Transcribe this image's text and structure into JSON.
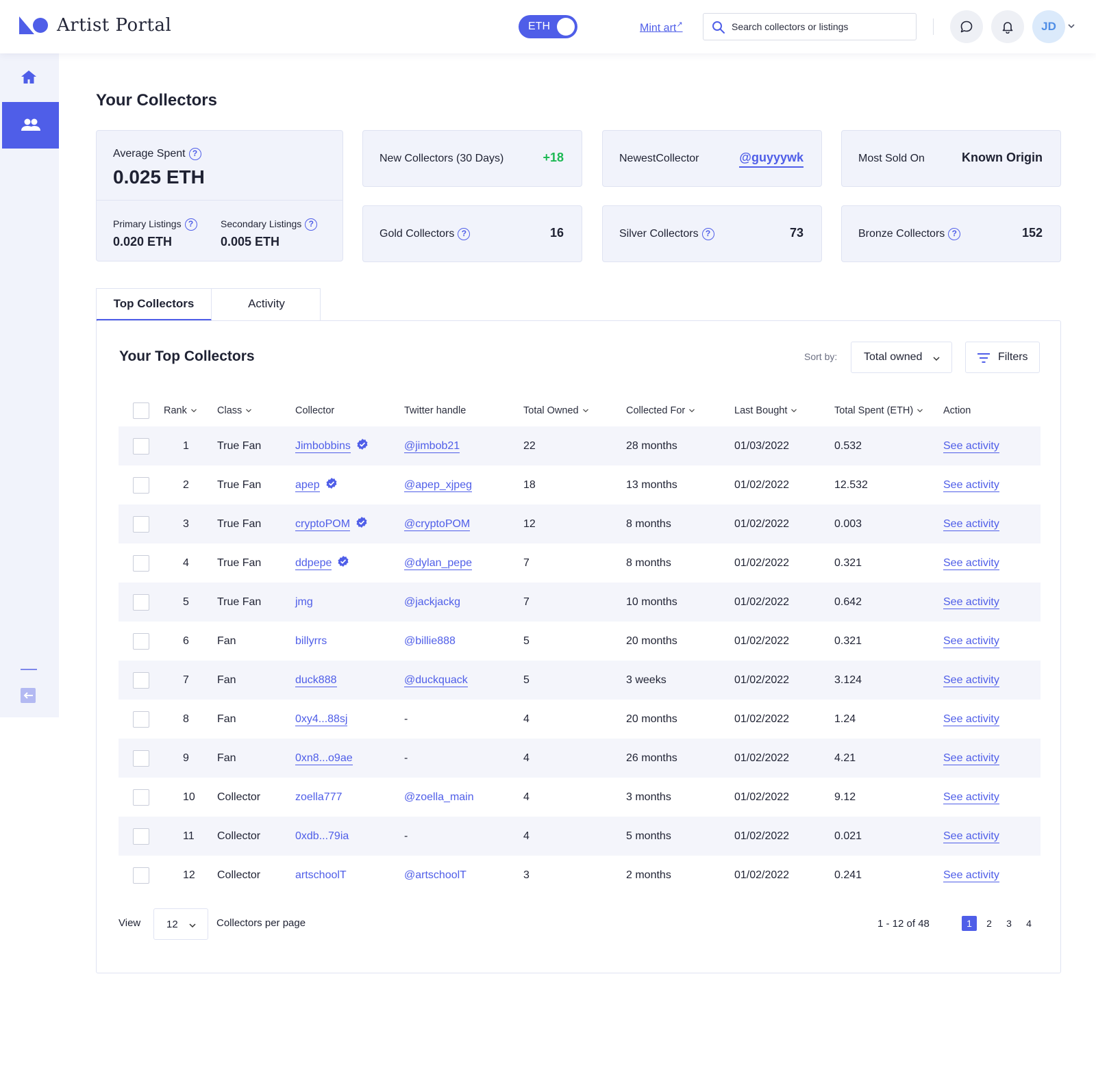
{
  "header": {
    "brand": "Artist Portal",
    "currency_toggle": "ETH",
    "mint_label": "Mint art",
    "mint_arrow": "↗",
    "search_placeholder": "Search collectors or listings",
    "avatar_initials": "JD"
  },
  "colors": {
    "accent": "#4f5ee8",
    "positive": "#1db954",
    "card_bg": "#f1f3fb"
  },
  "main": {
    "title": "Your Collectors",
    "average_spent": {
      "label": "Average Spent",
      "value": "0.025 ETH",
      "primary_label": "Primary Listings",
      "primary_value": "0.020 ETH",
      "secondary_label": "Secondary Listings",
      "secondary_value": "0.005 ETH"
    },
    "stats": {
      "new_collectors": {
        "label": "New Collectors (30 Days)",
        "value": "+18"
      },
      "newest_collector": {
        "label": "NewestCollector",
        "value": "@guyyywk"
      },
      "most_sold_on": {
        "label": "Most Sold On",
        "value": "Known Origin"
      },
      "gold": {
        "label": "Gold Collectors",
        "value": "16"
      },
      "silver": {
        "label": "Silver Collectors",
        "value": "73"
      },
      "bronze": {
        "label": "Bronze Collectors",
        "value": "152"
      }
    },
    "tabs": [
      {
        "label": "Top Collectors"
      },
      {
        "label": "Activity"
      }
    ]
  },
  "table": {
    "title": "Your Top Collectors",
    "sort_label": "Sort by:",
    "sort_value": "Total owned",
    "filters_label": "Filters",
    "columns": {
      "rank": "Rank",
      "class": "Class",
      "collector": "Collector",
      "twitter": "Twitter handle",
      "owned": "Total Owned",
      "collected_for": "Collected For",
      "last_bought": "Last Bought",
      "spent": "Total Spent (ETH)",
      "action": "Action"
    },
    "action_label": "See activity",
    "rows": [
      {
        "rank": "1",
        "class": "True Fan",
        "collector": "Jimbobbins",
        "verified": true,
        "twitter": "@jimbob21",
        "owned": "22",
        "for": "28 months",
        "last": "01/03/2022",
        "spent": "0.532"
      },
      {
        "rank": "2",
        "class": "True Fan",
        "collector": "apep",
        "verified": true,
        "twitter": "@apep_xjpeg",
        "owned": "18",
        "for": "13 months",
        "last": "01/02/2022",
        "spent": "12.532"
      },
      {
        "rank": "3",
        "class": "True Fan",
        "collector": "cryptoPOM",
        "verified": true,
        "twitter": "@cryptoPOM",
        "owned": "12",
        "for": "8 months",
        "last": "01/02/2022",
        "spent": "0.003"
      },
      {
        "rank": "4",
        "class": "True Fan",
        "collector": "ddpepe",
        "verified": true,
        "twitter": "@dylan_pepe",
        "owned": "7",
        "for": "8 months",
        "last": "01/02/2022",
        "spent": "0.321"
      },
      {
        "rank": "5",
        "class": "True Fan",
        "collector": "jmg",
        "verified": false,
        "twitter": "@jackjackg",
        "owned": "7",
        "for": "10 months",
        "last": "01/02/2022",
        "spent": "0.642"
      },
      {
        "rank": "6",
        "class": "Fan",
        "collector": "billyrrs",
        "verified": false,
        "twitter": "@billie888",
        "owned": "5",
        "for": "20 months",
        "last": "01/02/2022",
        "spent": "0.321"
      },
      {
        "rank": "7",
        "class": "Fan",
        "collector": "duck888",
        "verified": false,
        "twitter": "@duckquack",
        "owned": "5",
        "for": "3 weeks",
        "last": "01/02/2022",
        "spent": "3.124"
      },
      {
        "rank": "8",
        "class": "Fan",
        "collector": "0xy4...88sj",
        "verified": false,
        "twitter": "-",
        "owned": "4",
        "for": "20 months",
        "last": "01/02/2022",
        "spent": "1.24"
      },
      {
        "rank": "9",
        "class": "Fan",
        "collector": "0xn8...o9ae",
        "verified": false,
        "twitter": "-",
        "owned": "4",
        "for": "26 months",
        "last": "01/02/2022",
        "spent": "4.21"
      },
      {
        "rank": "10",
        "class": "Collector",
        "collector": "zoella777",
        "verified": false,
        "twitter": "@zoella_main",
        "owned": "4",
        "for": "3 months",
        "last": "01/02/2022",
        "spent": "9.12"
      },
      {
        "rank": "11",
        "class": "Collector",
        "collector": "0xdb...79ia",
        "verified": false,
        "twitter": "-",
        "owned": "4",
        "for": "5 months",
        "last": "01/02/2022",
        "spent": "0.021"
      },
      {
        "rank": "12",
        "class": "Collector",
        "collector": "artschoolT",
        "verified": false,
        "twitter": "@artschoolT",
        "owned": "3",
        "for": "2 months",
        "last": "01/02/2022",
        "spent": "0.241"
      }
    ],
    "pagination": {
      "view_label": "View",
      "per_page_value": "12",
      "per_page_label": "Collectors per page",
      "range": "1 - 12 of 48",
      "pages": [
        "1",
        "2",
        "3",
        "4"
      ],
      "current_page": "1"
    }
  }
}
